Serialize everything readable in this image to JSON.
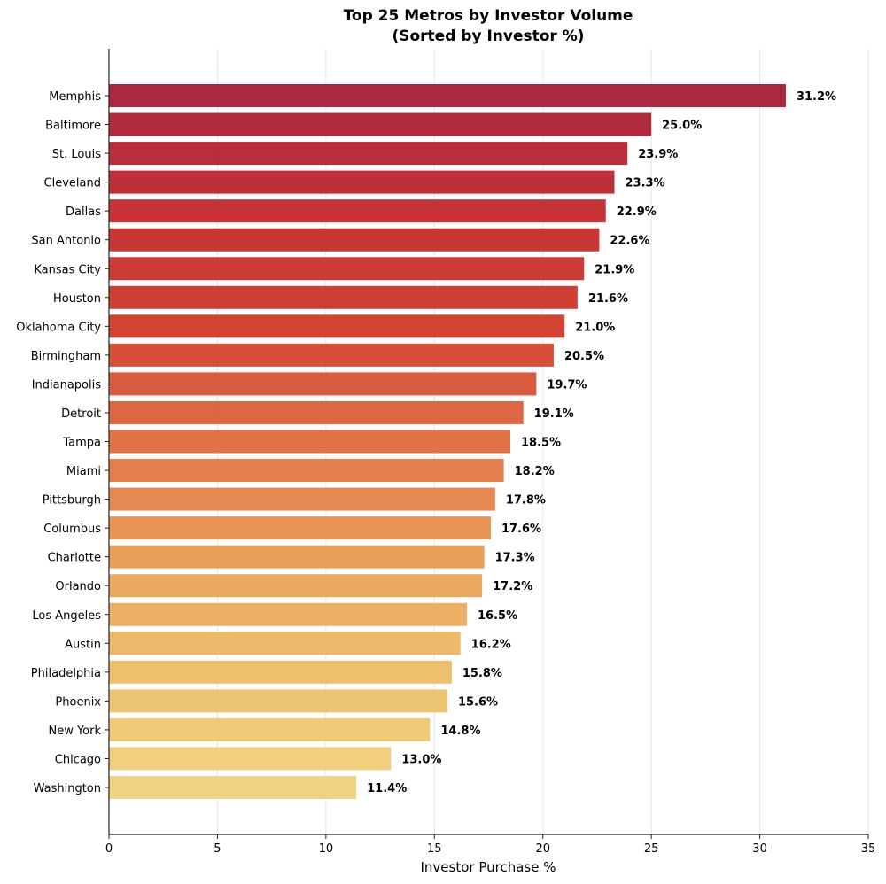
{
  "chart_data": {
    "type": "bar",
    "orientation": "horizontal",
    "title": "Top 25 Metros by Investor Volume",
    "subtitle": "(Sorted by Investor %)",
    "xlabel": "Investor Purchase %",
    "ylabel": "",
    "xlim": [
      0,
      35
    ],
    "xticks": [
      0,
      5,
      10,
      15,
      20,
      25,
      30,
      35
    ],
    "grid": "vertical",
    "categories": [
      "Memphis",
      "Baltimore",
      "St. Louis",
      "Cleveland",
      "Dallas",
      "San Antonio",
      "Kansas City",
      "Houston",
      "Oklahoma City",
      "Birmingham",
      "Indianapolis",
      "Detroit",
      "Tampa",
      "Miami",
      "Pittsburgh",
      "Columbus",
      "Charlotte",
      "Orlando",
      "Los Angeles",
      "Austin",
      "Philadelphia",
      "Phoenix",
      "New York",
      "Chicago",
      "Washington"
    ],
    "values": [
      31.2,
      25.0,
      23.9,
      23.3,
      22.9,
      22.6,
      21.9,
      21.6,
      21.0,
      20.5,
      19.7,
      19.1,
      18.5,
      18.2,
      17.8,
      17.6,
      17.3,
      17.2,
      16.5,
      16.2,
      15.8,
      15.6,
      14.8,
      13.0,
      11.4
    ],
    "data_labels": [
      "31.2%",
      "25.0%",
      "23.9%",
      "23.3%",
      "22.9%",
      "22.6%",
      "21.9%",
      "21.6%",
      "21.0%",
      "20.5%",
      "19.7%",
      "19.1%",
      "18.5%",
      "18.2%",
      "17.8%",
      "17.6%",
      "17.3%",
      "17.2%",
      "16.5%",
      "16.2%",
      "15.8%",
      "15.6%",
      "14.8%",
      "13.0%",
      "11.4%"
    ],
    "color_gradient": [
      "#a41f36",
      "#c3272b",
      "#cf3a28",
      "#e06b3f",
      "#e99a52",
      "#ecbd66",
      "#f0d27c"
    ]
  }
}
